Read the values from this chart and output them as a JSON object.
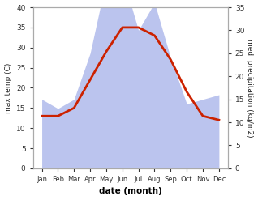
{
  "months": [
    "Jan",
    "Feb",
    "Mar",
    "Apr",
    "May",
    "Jun",
    "Jul",
    "Aug",
    "Sep",
    "Oct",
    "Nov",
    "Dec"
  ],
  "max_temp": [
    13,
    13,
    15,
    22,
    29,
    35,
    35,
    33,
    27,
    19,
    13,
    12
  ],
  "precipitation": [
    15,
    13,
    15,
    25,
    41,
    42,
    30,
    36,
    24,
    14,
    15,
    16
  ],
  "temp_color": "#cc2200",
  "precip_fill_color": "#bbc4ee",
  "left_ylabel": "max temp (C)",
  "right_ylabel": "med. precipitation (kg/m2)",
  "xlabel": "date (month)",
  "ylim_left": [
    0,
    40
  ],
  "ylim_right": [
    0,
    35
  ],
  "background_color": "#ffffff"
}
